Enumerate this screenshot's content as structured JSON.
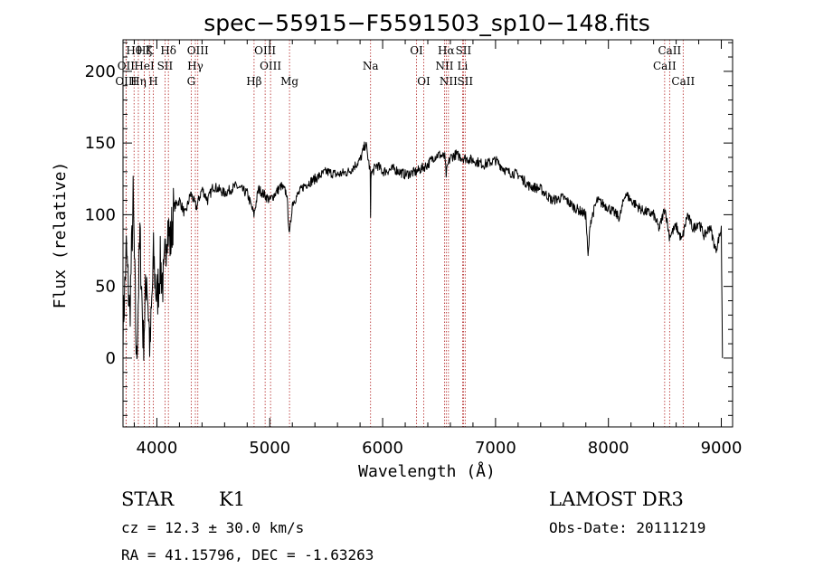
{
  "chart_data": {
    "type": "line",
    "title": "spec−55915−F5591503_sp10−148.fits",
    "xlabel": "Wavelength (Å)",
    "ylabel": "Flux (relative)",
    "xlim": [
      3700,
      9100
    ],
    "ylim": [
      -48,
      222
    ],
    "x_ticks": [
      4000,
      5000,
      6000,
      7000,
      8000,
      9000
    ],
    "y_ticks": [
      0,
      50,
      100,
      150,
      200
    ],
    "series": [
      {
        "name": "flux",
        "x": [
          3700,
          3730,
          3760,
          3790,
          3820,
          3850,
          3880,
          3910,
          3940,
          3970,
          4000,
          4030,
          4060,
          4090,
          4120,
          4150,
          4200,
          4250,
          4300,
          4350,
          4400,
          4450,
          4500,
          4600,
          4700,
          4800,
          4860,
          4900,
          5000,
          5100,
          5150,
          5175,
          5200,
          5300,
          5400,
          5500,
          5600,
          5700,
          5800,
          5850,
          5890,
          5893,
          5896,
          5950,
          6000,
          6100,
          6200,
          6300,
          6400,
          6450,
          6500,
          6550,
          6563,
          6580,
          6600,
          6650,
          6700,
          6800,
          6900,
          7000,
          7100,
          7200,
          7300,
          7400,
          7500,
          7600,
          7700,
          7800,
          7820,
          7840,
          7900,
          8000,
          8100,
          8150,
          8200,
          8300,
          8400,
          8450,
          8500,
          8540,
          8600,
          8650,
          8700,
          8750,
          8800,
          8850,
          8900,
          8950,
          9000,
          9010
        ],
        "values": [
          20,
          75,
          30,
          110,
          -5,
          85,
          10,
          60,
          5,
          70,
          40,
          65,
          50,
          95,
          80,
          105,
          110,
          100,
          115,
          105,
          118,
          110,
          120,
          115,
          120,
          115,
          100,
          118,
          110,
          120,
          115,
          85,
          108,
          120,
          125,
          130,
          128,
          130,
          138,
          150,
          130,
          95,
          128,
          135,
          130,
          132,
          128,
          130,
          135,
          140,
          142,
          140,
          128,
          135,
          140,
          142,
          140,
          138,
          135,
          138,
          130,
          128,
          120,
          118,
          110,
          112,
          105,
          100,
          70,
          95,
          110,
          105,
          98,
          115,
          110,
          103,
          100,
          90,
          105,
          85,
          92,
          82,
          100,
          90,
          95,
          85,
          92,
          75,
          90,
          0
        ]
      }
    ],
    "spectral_lines": [
      {
        "label": "Hθ",
        "x": 3798,
        "row": 1
      },
      {
        "label": "OII",
        "x": 3727,
        "row": 2
      },
      {
        "label": "OIII",
        "x": 3727,
        "row": 3
      },
      {
        "label": "Hη",
        "x": 3836,
        "row": 3
      },
      {
        "label": "Hζ",
        "x": 3889,
        "row": 1
      },
      {
        "label": "HeI",
        "x": 3889,
        "row": 2
      },
      {
        "label": "K",
        "x": 3934,
        "row": 1
      },
      {
        "label": "H",
        "x": 3969,
        "row": 3
      },
      {
        "label": "SII",
        "x": 4072,
        "row": 2
      },
      {
        "label": "Hδ",
        "x": 4102,
        "row": 1
      },
      {
        "label": "OIII",
        "x": 4363,
        "row": 1
      },
      {
        "label": "Hγ",
        "x": 4341,
        "row": 2
      },
      {
        "label": "G",
        "x": 4304,
        "row": 3
      },
      {
        "label": "OIII",
        "x": 4959,
        "row": 1
      },
      {
        "label": "OIII",
        "x": 5007,
        "row": 2
      },
      {
        "label": "Hβ",
        "x": 4861,
        "row": 3
      },
      {
        "label": "Mg",
        "x": 5175,
        "row": 3
      },
      {
        "label": "Na",
        "x": 5893,
        "row": 2
      },
      {
        "label": "OI",
        "x": 6300,
        "row": 1
      },
      {
        "label": "OI",
        "x": 6364,
        "row": 3
      },
      {
        "label": "Hα",
        "x": 6563,
        "row": 1
      },
      {
        "label": "NII",
        "x": 6548,
        "row": 2
      },
      {
        "label": "NII",
        "x": 6583,
        "row": 3
      },
      {
        "label": "SII",
        "x": 6716,
        "row": 1
      },
      {
        "label": "Li",
        "x": 6708,
        "row": 2
      },
      {
        "label": "SII",
        "x": 6731,
        "row": 3
      },
      {
        "label": "CaII",
        "x": 8542,
        "row": 1
      },
      {
        "label": "CaII",
        "x": 8498,
        "row": 2
      },
      {
        "label": "CaII",
        "x": 8662,
        "row": 3
      }
    ]
  },
  "info": {
    "object_class": "STAR",
    "subclass": "K1",
    "survey": "LAMOST DR3",
    "redshift": "cz = 12.3 ± 30.0 km/s",
    "obs_date": "Obs-Date: 20111219",
    "coords": "RA =  41.15796, DEC =  -1.63263"
  },
  "colors": {
    "line": "#000000",
    "marker": "#b22222",
    "axis": "#000000"
  }
}
